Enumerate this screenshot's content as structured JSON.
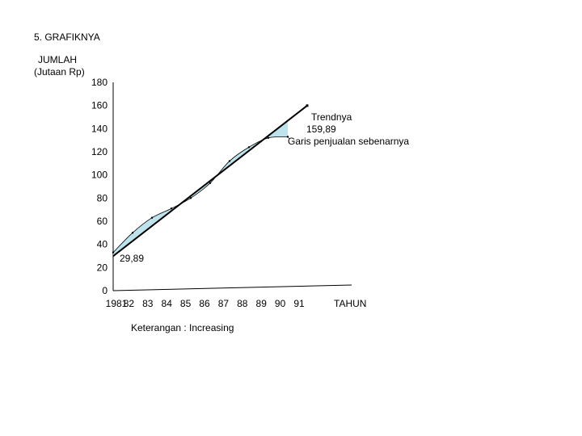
{
  "heading": "5.  GRAFIKNYA",
  "chart_data": {
    "type": "line",
    "ylabel_line1": "JUMLAH",
    "ylabel_line2": "(Jutaan Rp)",
    "xlabel": "TAHUN",
    "yticks": [
      "180",
      "160",
      "140",
      "120",
      "100",
      "80",
      "60",
      "40",
      "20",
      "0"
    ],
    "xticks": [
      "1981",
      "82",
      "83",
      "84",
      "85",
      "86",
      "87",
      "88",
      "89",
      "90",
      "91"
    ],
    "x": [
      1981,
      1982,
      1983,
      1984,
      1985,
      1986,
      1987,
      1988,
      1989,
      1990,
      1991
    ],
    "ylim": [
      0,
      180
    ],
    "grid": false,
    "series": [
      {
        "name": "Trendnya",
        "kind": "trend",
        "start_label": "29,89",
        "end_label": "159,89",
        "x": [
          1981,
          1991
        ],
        "values": [
          29.89,
          159.89
        ]
      },
      {
        "name": "Garis penjualan sebenarnya",
        "kind": "actual",
        "x": [
          1981,
          1982,
          1983,
          1984,
          1985,
          1986,
          1987,
          1988,
          1989,
          1990
        ],
        "values": [
          33,
          50,
          63,
          71,
          80,
          93,
          112,
          124,
          132,
          133
        ]
      }
    ],
    "legend_note": "Keterangan :  Increasing",
    "fill_color": "#bfe3ec",
    "line_color": "#000000"
  }
}
